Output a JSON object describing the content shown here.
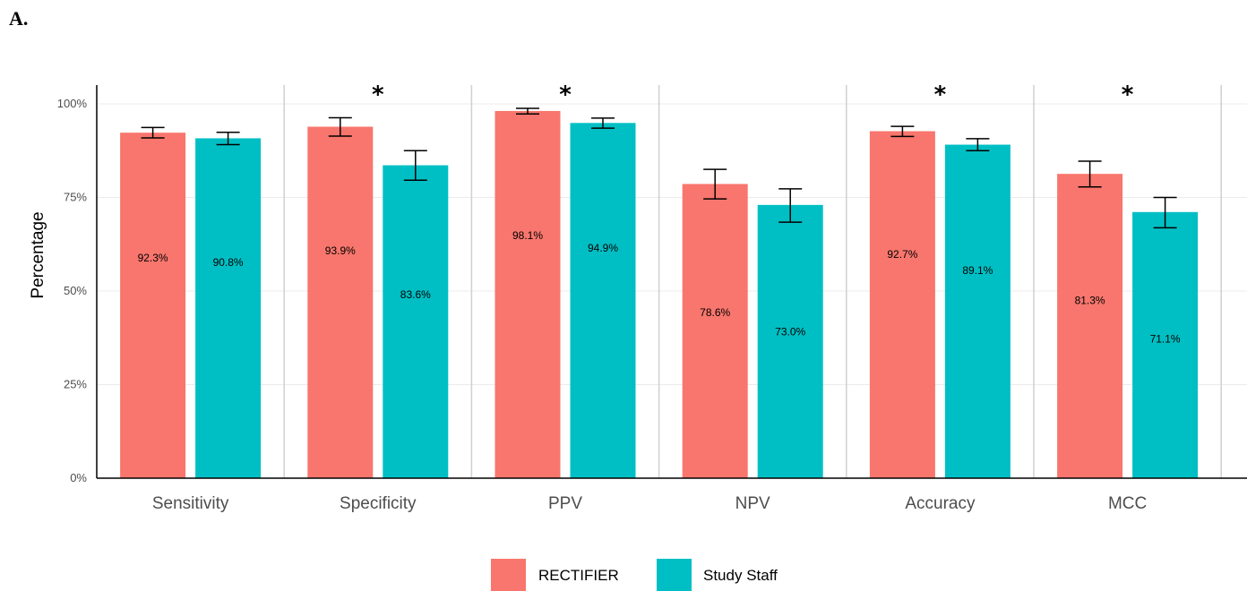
{
  "panel_label": "A.",
  "chart_data": {
    "type": "bar",
    "ylabel": "Percentage",
    "xlabel": "",
    "ylim": [
      0,
      100
    ],
    "yticks": [
      0,
      25,
      50,
      75,
      100
    ],
    "ytick_labels": [
      "0%",
      "25%",
      "50%",
      "75%",
      "100%"
    ],
    "categories": [
      "Sensitivity",
      "Specificity",
      "PPV",
      "NPV",
      "Accuracy",
      "MCC"
    ],
    "series": [
      {
        "name": "RECTIFIER",
        "color": "#F8766D",
        "values": [
          92.3,
          93.9,
          98.1,
          78.6,
          92.7,
          81.3
        ],
        "labels": [
          "92.3%",
          "93.9%",
          "98.1%",
          "78.6%",
          "92.7%",
          "81.3%"
        ],
        "error_low": [
          90.9,
          91.4,
          97.3,
          74.6,
          91.3,
          77.8
        ],
        "error_high": [
          93.7,
          96.3,
          98.8,
          82.5,
          94.0,
          84.7
        ],
        "label_y": [
          58.9,
          60.8,
          64.8,
          44.3,
          59.8,
          47.5
        ]
      },
      {
        "name": "Study Staff",
        "color": "#00BFC4",
        "values": [
          90.8,
          83.6,
          94.9,
          73.0,
          89.1,
          71.1
        ],
        "labels": [
          "90.8%",
          "83.6%",
          "94.9%",
          "73.0%",
          "89.1%",
          "71.1%"
        ],
        "error_low": [
          89.1,
          79.6,
          93.5,
          68.4,
          87.5,
          66.9
        ],
        "error_high": [
          92.4,
          87.5,
          96.2,
          77.3,
          90.7,
          75.0
        ],
        "label_y": [
          57.6,
          49.1,
          61.5,
          39.1,
          55.5,
          37.2
        ]
      }
    ],
    "significance": [
      "",
      "*",
      "*",
      "",
      "*",
      "*"
    ],
    "grid": true,
    "legend_position": "bottom"
  }
}
